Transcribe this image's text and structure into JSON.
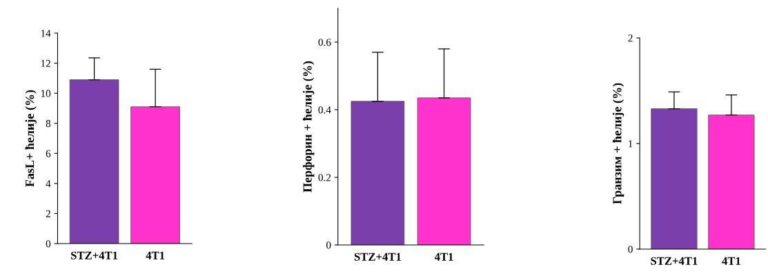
{
  "chart_data": [
    {
      "type": "bar",
      "ylabel": "FasL+ ћелије (%)",
      "categories": [
        "STZ+4T1",
        "4T1"
      ],
      "values": [
        10.9,
        9.1
      ],
      "colors": [
        "#7b3fab",
        "#ff33cc"
      ],
      "errors": [
        [
          10.9,
          12.35
        ],
        [
          9.1,
          11.6
        ]
      ],
      "ylim": [
        0,
        14
      ],
      "yticks": [
        0,
        2,
        4,
        6,
        8,
        10,
        12,
        14
      ]
    },
    {
      "type": "bar",
      "ylabel": "Перфорин + ћелије (%)",
      "categories": [
        "STZ+4T1",
        "4T1"
      ],
      "values": [
        0.425,
        0.435
      ],
      "colors": [
        "#7b3fab",
        "#ff33cc"
      ],
      "errors": [
        [
          0.425,
          0.57
        ],
        [
          0.435,
          0.58
        ]
      ],
      "ylim": [
        0,
        0.7
      ],
      "yticks": [
        0,
        0.2,
        0.4,
        0.6
      ]
    },
    {
      "type": "bar",
      "ylabel": "Гранзим + ћелије (%)",
      "categories": [
        "STZ+4T1",
        "4T1"
      ],
      "values": [
        1.33,
        1.27
      ],
      "colors": [
        "#7b3fab",
        "#ff33cc"
      ],
      "errors": [
        [
          1.33,
          1.49
        ],
        [
          1.27,
          1.46
        ]
      ],
      "ylim": [
        0,
        2
      ],
      "yticks": [
        0,
        1,
        2
      ]
    }
  ]
}
